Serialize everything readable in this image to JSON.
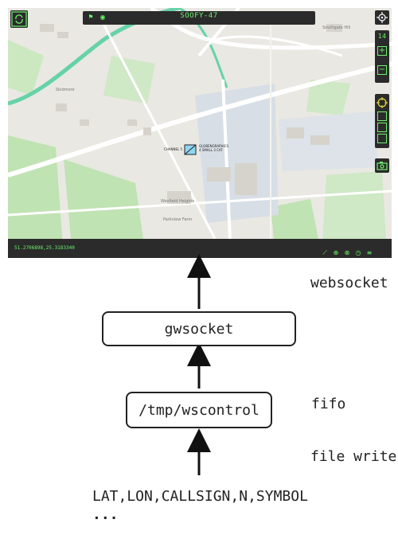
{
  "map": {
    "title": "SOOFY-47",
    "coords": "51.2706898,25.3183340",
    "zoom_level": "14",
    "marker_left_label": "CHANNEL 5",
    "marker_right_label": "GLOBENGRAPHICS",
    "marker_right_sub": "4 SMALL 3 CAT",
    "place_labels": [
      "Skidmore",
      "Southgate Hill",
      "Wexfield Heights",
      "Parkview Farm"
    ],
    "colors": {
      "ui_bg": "#2b2b2b",
      "accent": "#6cf36c",
      "water": "#66d2a9"
    }
  },
  "diagram": {
    "label_websocket": "websocket",
    "box_top": "gwsocket",
    "box_bottom": "/tmp/wscontrol",
    "label_fifo": "fifo",
    "label_file_write": "file write",
    "format_line": "LAT,LON,CALLSIGN,N,SYMBOL",
    "ellipsis": "..."
  }
}
